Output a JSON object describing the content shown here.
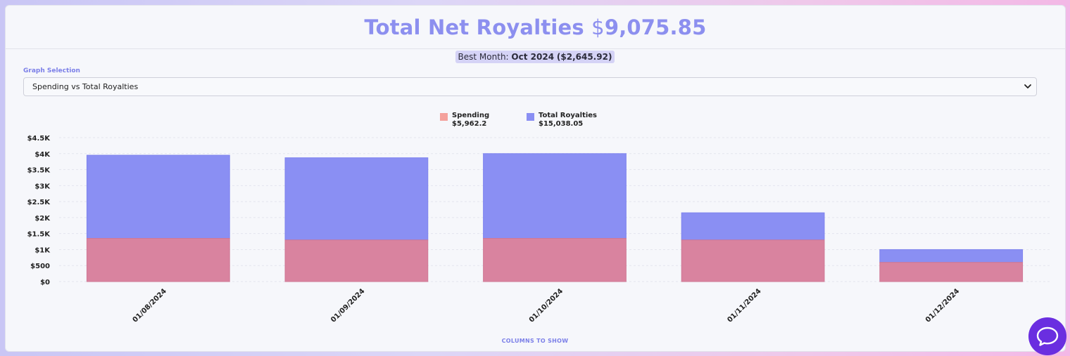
{
  "header": {
    "title_prefix": "Total Net Royalties",
    "currency_symbol": "$",
    "title_amount": "9,075.85"
  },
  "best_month": {
    "label": "Best Month:",
    "value": "Oct 2024",
    "amount": "($2,645.92)"
  },
  "graph_selection": {
    "label": "Graph Selection",
    "selected": "Spending vs Total Royalties"
  },
  "footer": {
    "label": "COLUMNS TO SHOW"
  },
  "colors": {
    "spending": "#d9839f",
    "royalties": "#8a8ff3",
    "legend_spending": "#f4a19c",
    "accent": "#8c8fef",
    "chat": "#6a2ee0"
  },
  "icons": {
    "select": "chevron-down-icon",
    "chat": "chat-bubble-icon"
  },
  "chart_data": {
    "type": "bar",
    "stacked": true,
    "categories": [
      "01/08/2024",
      "01/09/2024",
      "01/10/2024",
      "01/11/2024",
      "01/12/2024"
    ],
    "series": [
      {
        "name": "Spending",
        "total_label": "$5,962.2",
        "values": [
          1350,
          1300,
          1350,
          1300,
          600
        ]
      },
      {
        "name": "Total Royalties",
        "total_label": "$15,038.05",
        "values": [
          2600,
          2570,
          2650,
          850,
          400
        ]
      }
    ],
    "ylim": [
      0,
      4500
    ],
    "yticks": [
      0,
      500,
      1000,
      1500,
      2000,
      2500,
      3000,
      3500,
      4000,
      4500
    ],
    "ytick_labels": [
      "$0",
      "$500",
      "$1K",
      "$1.5K",
      "$2K",
      "$2.5K",
      "$3K",
      "$3.5K",
      "$4K",
      "$4.5K"
    ],
    "legend": "top",
    "grid": true
  }
}
